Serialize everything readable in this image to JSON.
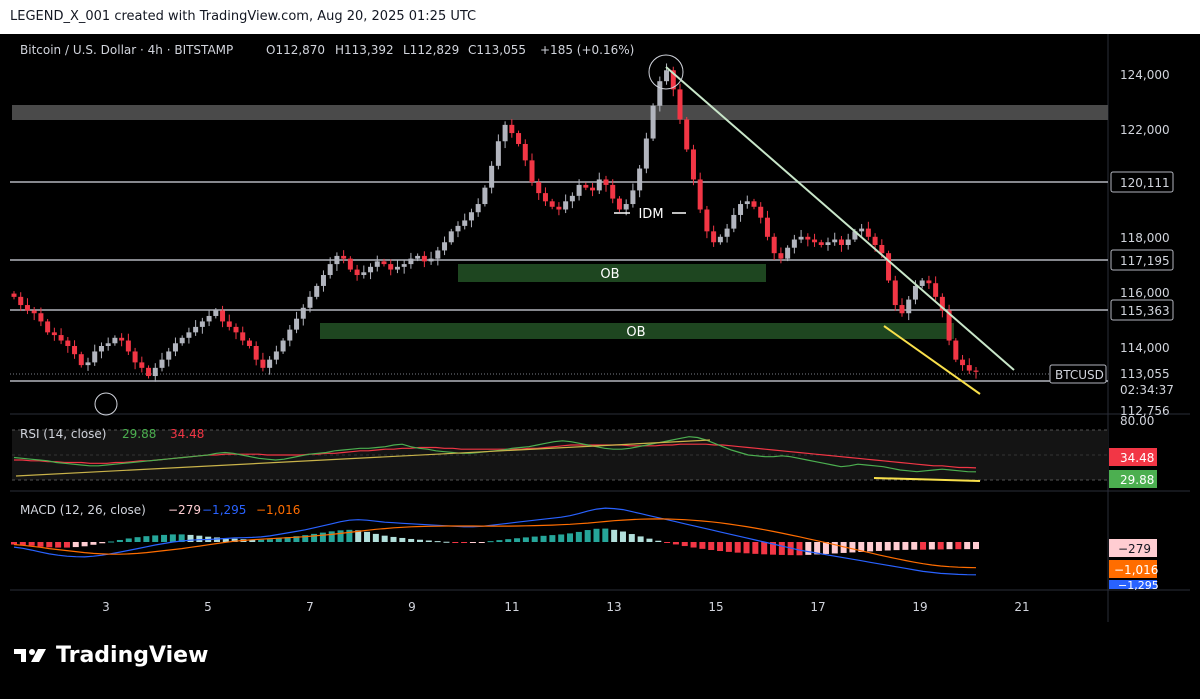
{
  "header": {
    "banner": "LEGEND_X_001 created with TradingView.com, Aug 20, 2025 01:25 UTC"
  },
  "legend": {
    "symbol": "Bitcoin / U.S. Dollar · 4h · BITSTAMP",
    "open": "O112,870",
    "high": "H113,392",
    "low": "L112,829",
    "close": "C113,055",
    "change": "+185 (+0.16%)"
  },
  "price_axis": {
    "ticks": [
      "124,000",
      "122,000",
      "118,000",
      "116,000",
      "114,000"
    ],
    "line_labels": [
      "120,111",
      "117,195",
      "115,363"
    ],
    "current_symbol": "BTCUSD",
    "current_price": "113,055",
    "countdown": "02:34:37",
    "low_label": "112,756"
  },
  "annotations": {
    "ob1": "OB",
    "ob2": "OB",
    "idm": "IDM"
  },
  "rsi": {
    "label": "RSI (14, close)",
    "value1": "29.88",
    "value2": "34.48",
    "level_80": "80.00",
    "tag_ma": "34.48",
    "tag_rsi": "29.88"
  },
  "macd": {
    "label": "MACD (12, 26, close)",
    "value_hist": "−279",
    "value_macd": "−1,295",
    "value_signal": "−1,016",
    "tag_hist": "−279",
    "tag_signal": "−1,016",
    "tag_macd": "−1,295"
  },
  "time_axis": {
    "ticks": [
      "3",
      "5",
      "7",
      "9",
      "11",
      "13",
      "15",
      "17",
      "19",
      "21"
    ]
  },
  "footer": {
    "brand": "TradingView"
  },
  "colors": {
    "up": "#b2b5be",
    "down": "#f23645",
    "ob_zone": "#1e4620",
    "trendline": "#c8e6c9",
    "yellow": "#f9e04b",
    "rsi_line": "#4caf50",
    "rsi_ma": "#f23645",
    "macd_line": "#2962ff",
    "signal_line": "#ff6d00"
  },
  "chart_data": {
    "type": "candlestick",
    "symbol": "BTCUSD",
    "timeframe": "4h",
    "x": [
      "3",
      "5",
      "7",
      "9",
      "11",
      "13",
      "15",
      "17",
      "19",
      "21"
    ],
    "ylim": [
      112500,
      125000
    ],
    "horizontal_levels": [
      120111,
      117195,
      115363,
      112756
    ],
    "close_series": [
      115800,
      115500,
      115300,
      115200,
      114900,
      114500,
      114400,
      114200,
      114000,
      113700,
      113300,
      113400,
      113800,
      114000,
      114100,
      114300,
      114200,
      113800,
      113400,
      113200,
      112900,
      113200,
      113500,
      113800,
      114100,
      114300,
      114500,
      114700,
      114900,
      115100,
      115300,
      114900,
      114700,
      114500,
      114200,
      114000,
      113500,
      113200,
      113500,
      113800,
      114200,
      114600,
      115000,
      115400,
      115800,
      116200,
      116600,
      117000,
      117300,
      117200,
      116800,
      116600,
      116700,
      116900,
      117100,
      117000,
      116800,
      116900,
      117000,
      117200,
      117300,
      117100,
      117200,
      117500,
      117800,
      118200,
      118400,
      118600,
      118900,
      119200,
      119800,
      120600,
      121500,
      122100,
      121800,
      121400,
      120800,
      120000,
      119600,
      119300,
      119100,
      119000,
      119300,
      119500,
      119900,
      119800,
      119700,
      120100,
      119900,
      119400,
      119000,
      119200,
      119700,
      120500,
      121600,
      122800,
      123700,
      124100,
      123400,
      122300,
      121200,
      120100,
      119000,
      118200,
      117800,
      118000,
      118300,
      118800,
      119200,
      119300,
      119100,
      118700,
      118000,
      117400,
      117200,
      117600,
      117900,
      118000,
      117900,
      117800,
      117700,
      117800,
      117900,
      117700,
      117900,
      118200,
      118300,
      118000,
      117700,
      117400,
      116400,
      115500,
      115200,
      115700,
      116200,
      116400,
      116300,
      115800,
      115300,
      114200,
      113500,
      113300,
      113100,
      113055
    ],
    "rsi": {
      "rsi_values": [
        47,
        46,
        45,
        44,
        43,
        41,
        40,
        39,
        38,
        37,
        37,
        38,
        39,
        40,
        41,
        42,
        43,
        44,
        45,
        46,
        47,
        48,
        49,
        50,
        52,
        53,
        52,
        50,
        48,
        46,
        45,
        44,
        45,
        47,
        49,
        51,
        52,
        53,
        55,
        56,
        57,
        58,
        58,
        59,
        60,
        62,
        63,
        60,
        58,
        57,
        55,
        54,
        53,
        52,
        52,
        53,
        54,
        55,
        56,
        58,
        59,
        60,
        62,
        64,
        66,
        67,
        66,
        64,
        62,
        60,
        58,
        57,
        57,
        58,
        60,
        62,
        64,
        66,
        68,
        70,
        72,
        71,
        68,
        64,
        60,
        56,
        53,
        50,
        49,
        48,
        48,
        49,
        48,
        46,
        44,
        42,
        40,
        38,
        36,
        37,
        39,
        38,
        37,
        36,
        34,
        32,
        31,
        30,
        31,
        32,
        33,
        32,
        31,
        30,
        29.88
      ],
      "ma_values": [
        44,
        44,
        43,
        43,
        42,
        42,
        41,
        41,
        41,
        40,
        40,
        40,
        41,
        41,
        42,
        43,
        43,
        44,
        45,
        46,
        47,
        48,
        49,
        50,
        50,
        51,
        51,
        51,
        51,
        51,
        50,
        50,
        50,
        50,
        50,
        51,
        51,
        52,
        52,
        53,
        54,
        55,
        55,
        56,
        57,
        57,
        58,
        58,
        59,
        59,
        59,
        58,
        58,
        57,
        57,
        57,
        57,
        57,
        57,
        57,
        57,
        58,
        58,
        59,
        60,
        61,
        62,
        62,
        62,
        62,
        62,
        62,
        62,
        61,
        61,
        61,
        61,
        62,
        62,
        63,
        63,
        63,
        63,
        62,
        62,
        61,
        60,
        59,
        58,
        57,
        56,
        55,
        54,
        53,
        52,
        51,
        50,
        49,
        48,
        47,
        46,
        45,
        44,
        43,
        42,
        41,
        40,
        39,
        38,
        37,
        37,
        36,
        35,
        35,
        34.48
      ]
    },
    "macd": {
      "macd_line": [
        -200,
        -250,
        -320,
        -400,
        -470,
        -520,
        -560,
        -580,
        -590,
        -560,
        -520,
        -460,
        -400,
        -330,
        -260,
        -190,
        -120,
        -60,
        0,
        40,
        70,
        90,
        100,
        120,
        140,
        160,
        170,
        180,
        200,
        240,
        300,
        360,
        420,
        480,
        560,
        640,
        720,
        800,
        860,
        880,
        860,
        820,
        780,
        760,
        740,
        720,
        700,
        680,
        660,
        640,
        620,
        600,
        600,
        620,
        660,
        700,
        740,
        780,
        820,
        860,
        900,
        940,
        980,
        1040,
        1120,
        1220,
        1300,
        1340,
        1320,
        1280,
        1200,
        1120,
        1040,
        960,
        880,
        800,
        720,
        640,
        560,
        480,
        400,
        320,
        240,
        160,
        80,
        0,
        -80,
        -160,
        -240,
        -320,
        -380,
        -440,
        -500,
        -560,
        -620,
        -680,
        -740,
        -800,
        -860,
        -920,
        -980,
        -1040,
        -1100,
        -1160,
        -1200,
        -1240,
        -1260,
        -1280,
        -1290,
        -1295
      ],
      "signal_line": [
        -100,
        -130,
        -170,
        -210,
        -260,
        -300,
        -340,
        -380,
        -420,
        -450,
        -470,
        -480,
        -480,
        -470,
        -450,
        -420,
        -380,
        -340,
        -300,
        -260,
        -210,
        -160,
        -110,
        -60,
        -10,
        30,
        60,
        90,
        110,
        130,
        150,
        170,
        190,
        210,
        240,
        270,
        300,
        340,
        380,
        420,
        460,
        500,
        530,
        560,
        580,
        600,
        610,
        620,
        625,
        630,
        632,
        632,
        630,
        628,
        626,
        626,
        628,
        632,
        638,
        646,
        656,
        668,
        682,
        700,
        722,
        748,
        778,
        810,
        840,
        866,
        886,
        900,
        908,
        910,
        906,
        896,
        880,
        858,
        830,
        796,
        756,
        710,
        660,
        606,
        548,
        486,
        420,
        350,
        278,
        204,
        128,
        50,
        -28,
        -108,
        -188,
        -268,
        -348,
        -428,
        -508,
        -586,
        -660,
        -730,
        -796,
        -856,
        -906,
        -946,
        -976,
        -996,
        -1008,
        -1016
      ],
      "histogram_last": -279
    }
  }
}
